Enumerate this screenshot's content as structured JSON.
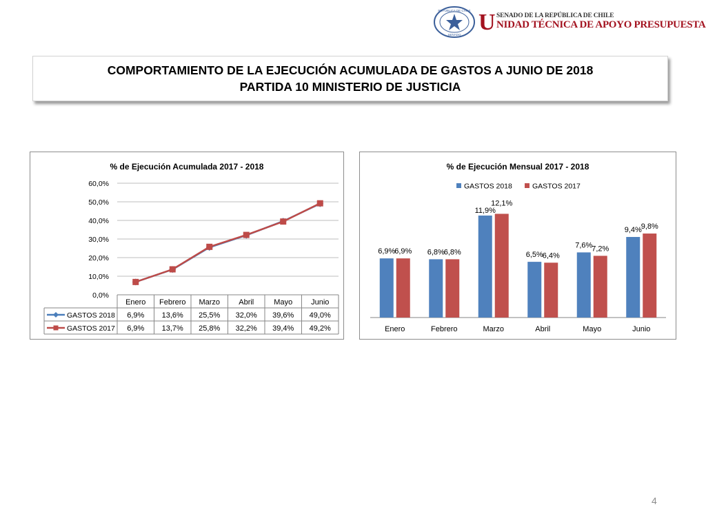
{
  "header": {
    "seal_text_top": "REPÚBLICA DE CHILE",
    "seal_text_bottom": "SENADO",
    "brand_initial": "U",
    "brand_senate": "SENADO DE LA REPÚBLICA DE CHILE",
    "brand_unit": "NIDAD TÉCNICA DE APOYO PRESUPUESTARIO",
    "colors": {
      "brand_red": "#a3121f",
      "seal_blue": "#3b5f9a"
    }
  },
  "title": {
    "line1": "COMPORTAMIENTO DE LA EJECUCIÓN ACUMULADA DE GASTOS A JUNIO DE 2018",
    "line2": "PARTIDA 10 MINISTERIO DE JUSTICIA"
  },
  "page_number": "4",
  "chart_data": [
    {
      "type": "line",
      "title": "% de Ejecución Acumulada 2017 - 2018",
      "categories": [
        "Enero",
        "Febrero",
        "Marzo",
        "Abril",
        "Mayo",
        "Junio"
      ],
      "ylim": [
        0,
        60
      ],
      "yticks": [
        "0,0%",
        "10,0%",
        "20,0%",
        "30,0%",
        "40,0%",
        "50,0%",
        "60,0%"
      ],
      "grid": true,
      "legend": "data-table",
      "series": [
        {
          "name": "GASTOS 2018",
          "color": "#4a7ebb",
          "marker": "diamond",
          "values": [
            6.9,
            13.6,
            25.5,
            32.0,
            39.6,
            49.0
          ],
          "labels": [
            "6,9%",
            "13,6%",
            "25,5%",
            "32,0%",
            "39,6%",
            "49,0%"
          ]
        },
        {
          "name": "GASTOS 2017",
          "color": "#be4b48",
          "marker": "square",
          "values": [
            6.9,
            13.7,
            25.8,
            32.2,
            39.4,
            49.2
          ],
          "labels": [
            "6,9%",
            "13,7%",
            "25,8%",
            "32,2%",
            "39,4%",
            "49,2%"
          ]
        }
      ]
    },
    {
      "type": "bar",
      "title": "% de Ejecución Mensual 2017 - 2018",
      "categories": [
        "Enero",
        "Febrero",
        "Marzo",
        "Abril",
        "Mayo",
        "Junio"
      ],
      "ylim": [
        0,
        13.5
      ],
      "grid": false,
      "legend": "top",
      "series": [
        {
          "name": "GASTOS 2018",
          "color": "#4f81bd",
          "values": [
            6.9,
            6.8,
            11.9,
            6.5,
            7.6,
            9.4
          ],
          "labels": [
            "6,9%",
            "6,8%",
            "11,9%",
            "6,5%",
            "7,6%",
            "9,4%"
          ]
        },
        {
          "name": "GASTOS 2017",
          "color": "#c0504d",
          "values": [
            6.9,
            6.8,
            12.1,
            6.4,
            7.2,
            9.8
          ],
          "labels": [
            "6,9%",
            "6,8%",
            "12,1%",
            "6,4%",
            "7,2%",
            "9,8%"
          ]
        }
      ]
    }
  ]
}
